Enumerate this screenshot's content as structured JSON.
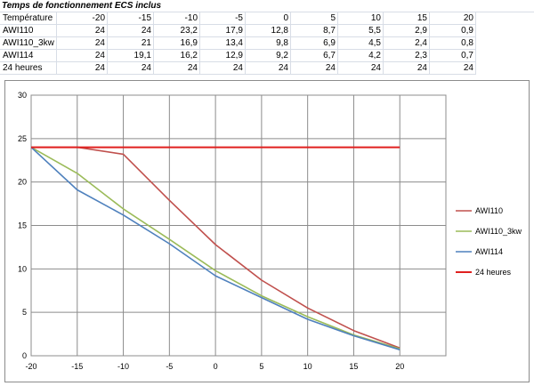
{
  "sheet": {
    "title": "Temps de fonctionnement ECS inclus",
    "header_label": "Température",
    "columns": [
      "-20",
      "-15",
      "-10",
      "-5",
      "0",
      "5",
      "10",
      "15",
      "20"
    ],
    "rows": [
      {
        "label": "AWI110",
        "values": [
          "24",
          "24",
          "23,2",
          "17,9",
          "12,8",
          "8,7",
          "5,5",
          "2,9",
          "0,9"
        ]
      },
      {
        "label": "AWI110_3kw",
        "values": [
          "24",
          "21",
          "16,9",
          "13,4",
          "9,8",
          "6,9",
          "4,5",
          "2,4",
          "0,8"
        ]
      },
      {
        "label": "AWI114",
        "values": [
          "24",
          "19,1",
          "16,2",
          "12,9",
          "9,2",
          "6,7",
          "4,2",
          "2,3",
          "0,7"
        ]
      },
      {
        "label": "24 heures",
        "values": [
          "24",
          "24",
          "24",
          "24",
          "24",
          "24",
          "24",
          "24",
          "24"
        ]
      }
    ]
  },
  "chart_data": {
    "type": "line",
    "x": [
      -20,
      -15,
      -10,
      -5,
      0,
      5,
      10,
      15,
      20
    ],
    "xlim": [
      -20,
      25
    ],
    "ylim": [
      0,
      30
    ],
    "x_ticks": [
      -20,
      -15,
      -10,
      -5,
      0,
      5,
      10,
      15,
      20
    ],
    "y_ticks": [
      0,
      5,
      10,
      15,
      20,
      25,
      30
    ],
    "grid": true,
    "legend_position": "right",
    "series": [
      {
        "name": "AWI110",
        "color": "#c0504d",
        "values": [
          24,
          24,
          23.2,
          17.9,
          12.8,
          8.7,
          5.5,
          2.9,
          0.9
        ]
      },
      {
        "name": "AWI110_3kw",
        "color": "#9bbb59",
        "values": [
          24,
          21,
          16.9,
          13.4,
          9.8,
          6.9,
          4.5,
          2.4,
          0.8
        ]
      },
      {
        "name": "AWI114",
        "color": "#4f81bd",
        "values": [
          24,
          19.1,
          16.2,
          12.9,
          9.2,
          6.7,
          4.2,
          2.3,
          0.7
        ]
      },
      {
        "name": "24 heures",
        "color": "#e0201f",
        "values": [
          24,
          24,
          24,
          24,
          24,
          24,
          24,
          24,
          24
        ]
      }
    ]
  }
}
